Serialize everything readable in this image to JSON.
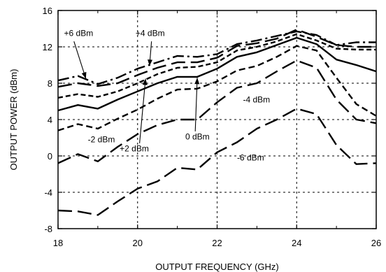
{
  "chart_data": {
    "type": "line",
    "title": "",
    "xlabel": "OUTPUT FREQUENCY (GHz)",
    "ylabel": "OUTPUT POWER (dBm)",
    "xlim": [
      18,
      26
    ],
    "ylim": [
      -8,
      16
    ],
    "xticks": [
      "18",
      "20",
      "22",
      "24",
      "26"
    ],
    "yticks": [
      "-8",
      "-4",
      "0",
      "4",
      "8",
      "12",
      "16"
    ],
    "grid": "dotted",
    "series": [
      {
        "name": "+6 dBm",
        "dash": "dashdot",
        "x": [
          18,
          18.5,
          19,
          19.5,
          20,
          20.5,
          21,
          21.5,
          22,
          22.5,
          23,
          23.5,
          24,
          24.5,
          25,
          25.5,
          26
        ],
        "y": [
          8.3,
          8.8,
          7.9,
          8.6,
          9.6,
          10.3,
          11.0,
          10.9,
          11.2,
          12.3,
          12.7,
          13.2,
          13.7,
          13.3,
          12.2,
          12.5,
          12.5
        ]
      },
      {
        "name": "+4 dBm",
        "dash": "longdash",
        "x": [
          18,
          18.5,
          19,
          19.5,
          20,
          20.5,
          21,
          21.5,
          22,
          22.5,
          23,
          23.5,
          24,
          24.5,
          25,
          25.5,
          26
        ],
        "y": [
          7.6,
          8.0,
          7.7,
          8.0,
          8.9,
          9.7,
          10.3,
          10.3,
          10.8,
          12.1,
          12.4,
          12.9,
          13.9,
          13.1,
          12.2,
          12.0,
          12.0
        ]
      },
      {
        "name": "+2 dBm",
        "dash": "medium",
        "x": [
          18,
          18.5,
          19,
          19.5,
          20,
          20.5,
          21,
          21.5,
          22,
          22.5,
          23,
          23.5,
          24,
          24.5,
          25,
          25.5,
          26
        ],
        "y": [
          6.4,
          6.8,
          6.5,
          7.1,
          8.0,
          9.0,
          9.7,
          9.8,
          10.3,
          11.6,
          12.0,
          12.6,
          13.4,
          12.7,
          11.8,
          11.7,
          11.7
        ]
      },
      {
        "name": "0 dBm",
        "dash": "solid",
        "x": [
          18,
          18.5,
          19,
          19.5,
          20,
          20.5,
          21,
          21.5,
          22,
          22.5,
          23,
          23.5,
          24,
          24.5,
          25,
          25.5,
          26
        ],
        "y": [
          5.0,
          5.6,
          5.2,
          6.2,
          7.1,
          8.0,
          8.7,
          8.7,
          9.6,
          10.9,
          11.4,
          12.2,
          13.0,
          12.3,
          10.6,
          10.0,
          9.3
        ]
      },
      {
        "name": "-2 dBm",
        "dash": "dashed",
        "x": [
          18,
          18.5,
          19,
          19.5,
          20,
          20.5,
          21,
          21.5,
          22,
          22.5,
          23,
          23.5,
          24,
          24.5,
          25,
          25.5,
          26
        ],
        "y": [
          2.8,
          3.5,
          3.0,
          4.1,
          5.1,
          6.3,
          7.3,
          7.4,
          8.2,
          9.4,
          9.9,
          10.9,
          12.1,
          11.6,
          8.6,
          5.7,
          4.4
        ]
      },
      {
        "name": "-4 dBm",
        "dash": "longdash",
        "x": [
          18,
          18.5,
          19,
          19.5,
          20,
          20.5,
          21,
          21.5,
          22,
          22.5,
          23,
          23.5,
          24,
          24.5,
          25,
          25.5,
          26
        ],
        "y": [
          -0.8,
          0.2,
          -0.6,
          1.0,
          2.4,
          3.4,
          4.0,
          4.0,
          5.9,
          7.5,
          8.0,
          9.3,
          10.5,
          9.7,
          6.2,
          4.0,
          3.6
        ]
      },
      {
        "name": "-6 dBm",
        "dash": "longdash",
        "x": [
          18,
          18.5,
          19,
          19.5,
          20,
          20.5,
          21,
          21.5,
          22,
          22.5,
          23,
          23.5,
          24,
          24.5,
          25,
          25.5,
          26
        ],
        "y": [
          -6.0,
          -6.1,
          -6.5,
          -5.0,
          -3.6,
          -2.8,
          -1.3,
          -1.5,
          0.4,
          1.5,
          3.0,
          4.0,
          5.2,
          4.6,
          1.2,
          -0.9,
          -0.8
        ]
      }
    ],
    "annotations": [
      {
        "text": "+6 dBm",
        "x": 18.15,
        "y": 13.2
      },
      {
        "text": "+4 dBm",
        "x": 19.95,
        "y": 13.2
      },
      {
        "text": "-4 dBm",
        "x": 22.65,
        "y": 5.9
      },
      {
        "text": "-2 dBm",
        "x": 18.75,
        "y": 1.5
      },
      {
        "text": "0 dBm",
        "x": 21.2,
        "y": 1.8
      },
      {
        "text": "+2 dBm",
        "x": 19.55,
        "y": 0.5
      },
      {
        "text": "-6 dBm",
        "x": 22.5,
        "y": -0.5
      }
    ],
    "arrows": [
      {
        "from": [
          18.4,
          12.6
        ],
        "to": [
          18.7,
          8.5
        ]
      },
      {
        "from": [
          20.35,
          12.6
        ],
        "to": [
          20.3,
          9.9
        ]
      },
      {
        "from": [
          21.45,
          2.7
        ],
        "to": [
          21.5,
          8.6
        ]
      },
      {
        "from": [
          20.05,
          1.4
        ],
        "to": [
          20.2,
          8.5
        ]
      }
    ]
  }
}
